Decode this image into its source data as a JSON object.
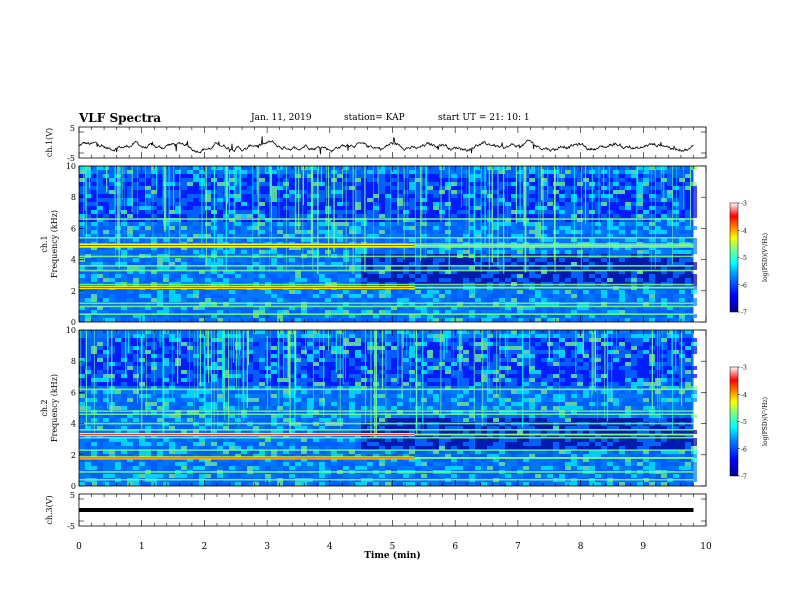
{
  "header": {
    "title": "VLF Spectra",
    "date": "Jan. 11, 2019",
    "station": "station= KAP",
    "start": "start  UT  =   21: 10: 1"
  },
  "colors": {
    "waveform": "#000000",
    "axis": "#000000",
    "colormap": [
      "#00008f",
      "#0000ff",
      "#0080ff",
      "#00ffff",
      "#80ff80",
      "#ffff00",
      "#ff8000",
      "#ff0000",
      "#ffffff"
    ]
  },
  "chart_data": [
    {
      "type": "line",
      "ylabel": "ch.1(V)",
      "ylim": [
        -5,
        5
      ],
      "yticks": [
        "5",
        "-5"
      ],
      "xlim": [
        0,
        10
      ],
      "series": [
        {
          "values_summary": "noisy waveform fluctuating around -1 V"
        }
      ]
    },
    {
      "type": "heatmap",
      "ylabel": "ch.1\nFrequency (kHz)",
      "ylim": [
        0,
        10
      ],
      "yticks": [
        "0",
        "2",
        "4",
        "6",
        "8",
        "10"
      ],
      "xlim": [
        0,
        9.8
      ],
      "colorbar": {
        "label": "log(PSD)(V²/Hz)",
        "range": [
          -7,
          -3
        ],
        "ticks": [
          "-3",
          "-4",
          "-5",
          "-6",
          "-7"
        ]
      },
      "bands_khz": [
        0.5,
        1.0,
        1.2,
        2.2,
        2.4,
        3.3,
        3.6,
        4.2,
        4.8,
        5.0,
        5.4,
        6.6
      ],
      "strong_bands_khz": [
        2.2,
        4.9
      ]
    },
    {
      "type": "heatmap",
      "ylabel": "ch.2\nFrequency (kHz)",
      "ylim": [
        0,
        10
      ],
      "yticks": [
        "0",
        "2",
        "4",
        "6",
        "8",
        "10"
      ],
      "xlim": [
        0,
        9.8
      ],
      "colorbar": {
        "label": "log(PSD)(V²/Hz)",
        "range": [
          -7,
          -3
        ],
        "ticks": [
          "-3",
          "-4",
          "-5",
          "-6",
          "-7"
        ]
      },
      "bands_khz": [
        0.4,
        0.9,
        1.8,
        2.3,
        3.1,
        3.3,
        3.6,
        4.0,
        4.6,
        4.8,
        6.2
      ],
      "strong_bands_khz": [
        1.8,
        3.3
      ]
    },
    {
      "type": "line",
      "ylabel": "ch.3(V)",
      "ylim": [
        -5,
        5
      ],
      "yticks": [
        "5",
        "-5"
      ],
      "xlim": [
        0,
        10
      ],
      "xlabel": "Time  (min)",
      "xticks": [
        "0",
        "1",
        "2",
        "3",
        "4",
        "5",
        "6",
        "7",
        "8",
        "9",
        "10"
      ],
      "series": [
        {
          "constant": 0,
          "xrange": [
            0,
            9.8
          ]
        }
      ]
    }
  ]
}
